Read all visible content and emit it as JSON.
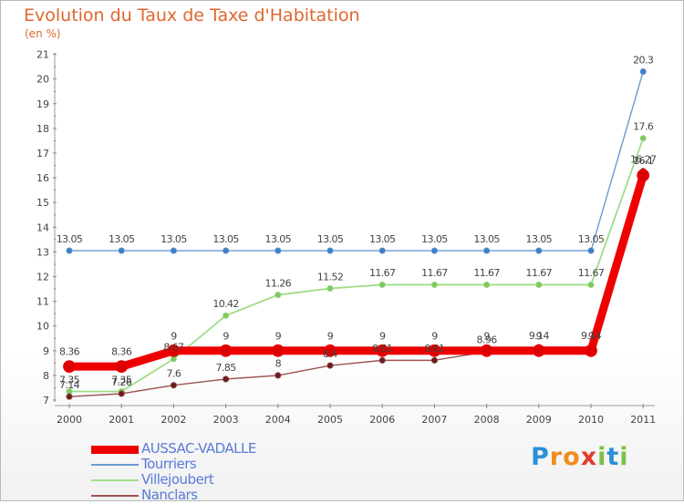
{
  "chart_data": {
    "type": "line",
    "title": "Evolution du Taux de Taxe d'Habitation",
    "subtitle": "(en %)",
    "x": [
      "2000",
      "2001",
      "2002",
      "2003",
      "2004",
      "2005",
      "2006",
      "2007",
      "2008",
      "2009",
      "2010",
      "2011"
    ],
    "yticks": [
      "7",
      "8",
      "9",
      "10",
      "11",
      "12",
      "13",
      "14",
      "15",
      "16",
      "17",
      "18",
      "19",
      "20",
      "21"
    ],
    "ylim": [
      7,
      21
    ],
    "grid": false,
    "legend_position": "bottom-left",
    "series": [
      {
        "name": "Tourriers",
        "color": "#6b9bd1",
        "marker": "#3d7fc3",
        "width": 1.4,
        "r": 3.2,
        "values": [
          13.05,
          13.05,
          13.05,
          13.05,
          13.05,
          13.05,
          13.05,
          13.05,
          13.05,
          13.05,
          13.05,
          20.3
        ],
        "labels": [
          "13.05",
          "13.05",
          "13.05",
          "13.05",
          "13.05",
          "13.05",
          "13.05",
          "13.05",
          "13.05",
          "13.05",
          "13.05",
          "20.3"
        ]
      },
      {
        "name": "Villejoubert",
        "color": "#9edc88",
        "marker": "#7cc95f",
        "width": 1.8,
        "r": 3.2,
        "values": [
          7.35,
          7.35,
          8.67,
          10.42,
          11.26,
          11.52,
          11.67,
          11.67,
          11.67,
          11.67,
          11.67,
          17.6
        ],
        "labels": [
          "7.35",
          "7.35",
          "8.67",
          "10.42",
          "11.26",
          "11.52",
          "11.67",
          "11.67",
          "11.67",
          "11.67",
          "11.67",
          "17.6"
        ]
      },
      {
        "name": "Nanclars",
        "color": "#9c5252",
        "marker": "#6b1d1d",
        "width": 1.4,
        "r": 3.2,
        "values": [
          7.14,
          7.26,
          7.6,
          7.85,
          8,
          8.4,
          8.61,
          8.61,
          8.96,
          9.14,
          9.14,
          16.27
        ],
        "labels": [
          "7.14",
          "7.26",
          "7.6",
          "7.85",
          "8",
          "8.4",
          "8.61",
          "8.61",
          "8.96",
          "9.14",
          "9.14",
          "16.27"
        ]
      },
      {
        "name": "AUSSAC-VADALLE",
        "color": "#ee0000",
        "marker": "#dd0000",
        "width": 9,
        "r": 6.5,
        "values": [
          8.36,
          8.36,
          9,
          9,
          9,
          9,
          9,
          9,
          9,
          9,
          9,
          16.1
        ],
        "labels": [
          "8.36",
          "8.36",
          "9",
          "9",
          "9",
          "9",
          "9",
          "9",
          "9",
          "9",
          "9",
          "16.1"
        ]
      }
    ]
  },
  "legend": [
    {
      "name": "AUSSAC-VADALLE",
      "color": "#ee0000",
      "width": 9
    },
    {
      "name": "Tourriers",
      "color": "#6b9bd1",
      "width": 2
    },
    {
      "name": "Villejoubert",
      "color": "#9edc88",
      "width": 2
    },
    {
      "name": "Nanclars",
      "color": "#9c5252",
      "width": 2
    }
  ],
  "logo": {
    "letters": [
      "P",
      "r",
      "o",
      "x",
      "i",
      "t",
      "i"
    ],
    "colors": [
      "#2c8fd8",
      "#f08c1e",
      "#f08c1e",
      "#e23c2c",
      "#7cc243",
      "#2c8fd8",
      "#7cc243"
    ]
  }
}
